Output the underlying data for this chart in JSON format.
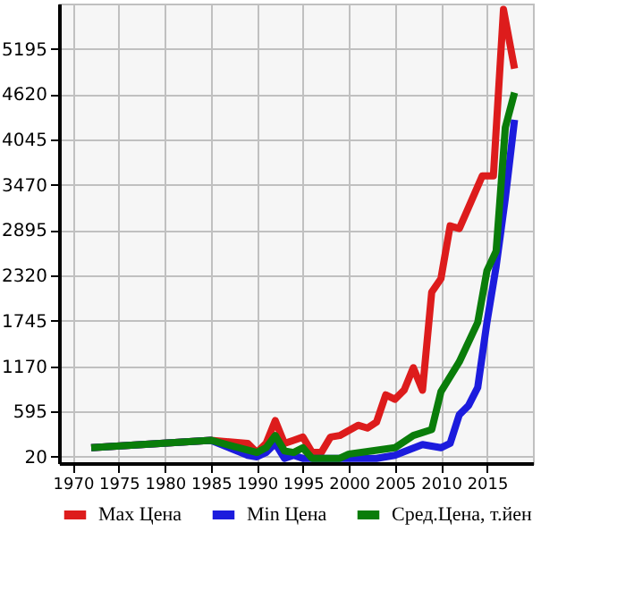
{
  "chart_data": {
    "type": "line",
    "xlim": [
      1968.5,
      2020
    ],
    "xticks": [
      1970,
      1975,
      1980,
      1985,
      1990,
      1995,
      2000,
      2005,
      2010,
      2015
    ],
    "ylim": [
      -60,
      5770
    ],
    "yticks": [
      20,
      595,
      1170,
      1745,
      2320,
      2895,
      3470,
      4045,
      4620,
      5195
    ],
    "grid": true,
    "legend": "bottom",
    "marker": "none",
    "line_style": "solid",
    "series": [
      {
        "name": "Max Цена",
        "color": "#dd1c1c",
        "x": [
          1972,
          1985,
          1989,
          1990,
          1991,
          1992,
          1993,
          1994,
          1995,
          1996,
          1997,
          1998,
          1999,
          2001,
          2002,
          2003,
          2004,
          2005,
          2006,
          2007,
          2008,
          2009,
          2010,
          2011,
          2012,
          2014.5,
          2015.7,
          2016.8,
          2018
        ],
        "values": [
          135,
          230,
          190,
          75,
          190,
          480,
          190,
          230,
          270,
          75,
          75,
          270,
          290,
          420,
          385,
          460,
          805,
          750,
          865,
          1150,
          865,
          2110,
          2280,
          2950,
          2915,
          3585,
          3585,
          5695,
          4945
        ]
      },
      {
        "name": "Min Цена",
        "color": "#1c1cdd",
        "x": [
          1972,
          1985,
          1989,
          1990,
          1991,
          1992,
          1993,
          1994,
          1995,
          1997,
          2003,
          2005,
          2008,
          2010,
          2011,
          2012,
          2013,
          2014,
          2015,
          2016,
          2017,
          2018
        ],
        "values": [
          135,
          230,
          40,
          20,
          75,
          190,
          0,
          40,
          0,
          0,
          0,
          40,
          175,
          135,
          190,
          555,
          670,
          900,
          1725,
          2435,
          3300,
          4295
        ]
      },
      {
        "name": "Сред.Цена, т.йен",
        "color": "#0a7d0a",
        "x": [
          1972,
          1985,
          1990,
          1991,
          1992,
          1993,
          1994,
          1995,
          1996,
          1999,
          2000,
          2005,
          2007,
          2009,
          2010,
          2012,
          2014,
          2015,
          2016,
          2017,
          2018
        ],
        "values": [
          135,
          230,
          75,
          135,
          290,
          95,
          75,
          135,
          0,
          0,
          55,
          135,
          290,
          365,
          845,
          1225,
          1725,
          2380,
          2630,
          4200,
          4640
        ]
      }
    ]
  }
}
